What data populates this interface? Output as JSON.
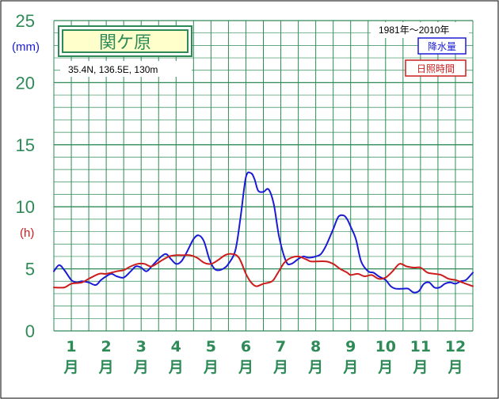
{
  "chart_data": {
    "type": "line",
    "title": "関ケ原",
    "subtitle": "35.4N,  136.5E,  130m",
    "period": "1981年〜2010年",
    "y_unit_primary": "(mm)",
    "y_unit_secondary": "(h)",
    "ylim": [
      0,
      25
    ],
    "yticks": [
      "0",
      "5",
      "10",
      "15",
      "20",
      "25"
    ],
    "grid": true,
    "legend_position": "top-right",
    "month_numbers": [
      "1",
      "2",
      "3",
      "4",
      "5",
      "6",
      "7",
      "8",
      "9",
      "10",
      "11",
      "12"
    ],
    "month_unit": "月",
    "x_range": [
      0.5,
      12.5
    ],
    "series": [
      {
        "name": "降水量",
        "color": "#1b1bd6",
        "x": [
          0.5,
          0.65,
          0.8,
          1.0,
          1.15,
          1.3,
          1.5,
          1.7,
          1.85,
          2.0,
          2.15,
          2.3,
          2.5,
          2.7,
          2.85,
          3.0,
          3.15,
          3.3,
          3.5,
          3.7,
          3.85,
          4.0,
          4.15,
          4.3,
          4.5,
          4.65,
          4.8,
          4.95,
          5.1,
          5.25,
          5.4,
          5.5,
          5.7,
          5.85,
          6.0,
          6.15,
          6.25,
          6.35,
          6.5,
          6.65,
          6.8,
          6.95,
          7.15,
          7.3,
          7.5,
          7.65,
          7.8,
          8.0,
          8.15,
          8.3,
          8.5,
          8.65,
          8.8,
          8.9,
          9.0,
          9.15,
          9.3,
          9.5,
          9.65,
          9.8,
          10.0,
          10.15,
          10.3,
          10.5,
          10.65,
          10.8,
          10.95,
          11.1,
          11.25,
          11.4,
          11.55,
          11.7,
          11.85,
          12.0,
          12.15,
          12.3,
          12.5
        ],
        "values": [
          4.8,
          5.3,
          4.9,
          4.1,
          3.9,
          4.0,
          3.9,
          3.7,
          4.1,
          4.4,
          4.6,
          4.4,
          4.3,
          4.8,
          5.2,
          5.1,
          4.8,
          5.2,
          5.8,
          6.2,
          5.8,
          5.4,
          5.6,
          6.3,
          7.4,
          7.7,
          7.2,
          5.8,
          5.0,
          4.9,
          5.1,
          5.4,
          6.5,
          9.2,
          12.4,
          12.7,
          12.2,
          11.3,
          11.2,
          11.4,
          10.2,
          7.6,
          5.6,
          5.4,
          5.8,
          6.0,
          5.9,
          6.0,
          6.2,
          6.9,
          8.2,
          9.2,
          9.3,
          9.0,
          8.4,
          7.4,
          5.6,
          4.8,
          4.7,
          4.4,
          4.1,
          3.6,
          3.4,
          3.4,
          3.4,
          3.1,
          3.2,
          3.8,
          3.9,
          3.5,
          3.5,
          3.8,
          3.9,
          3.8,
          4.0,
          4.1,
          4.7
        ]
      },
      {
        "name": "日照時間",
        "color": "#cc1d1d",
        "x": [
          0.5,
          0.8,
          1.0,
          1.3,
          1.5,
          1.8,
          2.0,
          2.3,
          2.5,
          2.7,
          2.9,
          3.1,
          3.3,
          3.6,
          3.8,
          4.0,
          4.2,
          4.4,
          4.6,
          4.8,
          5.0,
          5.2,
          5.4,
          5.6,
          5.8,
          6.0,
          6.15,
          6.3,
          6.5,
          6.75,
          6.9,
          7.1,
          7.3,
          7.5,
          7.7,
          7.85,
          8.0,
          8.3,
          8.5,
          8.7,
          8.9,
          9.0,
          9.2,
          9.4,
          9.6,
          9.8,
          10.0,
          10.2,
          10.4,
          10.6,
          10.8,
          11.0,
          11.2,
          11.4,
          11.6,
          11.8,
          12.0,
          12.2,
          12.4,
          12.5
        ],
        "values": [
          3.5,
          3.5,
          3.8,
          3.9,
          4.2,
          4.6,
          4.6,
          4.8,
          4.9,
          5.2,
          5.4,
          5.4,
          5.2,
          5.7,
          6.0,
          6.1,
          6.1,
          6.1,
          5.9,
          5.5,
          5.4,
          5.7,
          6.1,
          6.2,
          5.9,
          4.6,
          3.9,
          3.6,
          3.8,
          4.0,
          4.6,
          5.5,
          5.9,
          6.0,
          5.8,
          5.6,
          5.6,
          5.6,
          5.4,
          5.0,
          4.7,
          4.5,
          4.6,
          4.4,
          4.5,
          4.2,
          4.3,
          4.8,
          5.4,
          5.2,
          5.1,
          5.1,
          4.7,
          4.6,
          4.5,
          4.2,
          4.1,
          3.9,
          3.7,
          3.6
        ]
      }
    ]
  }
}
